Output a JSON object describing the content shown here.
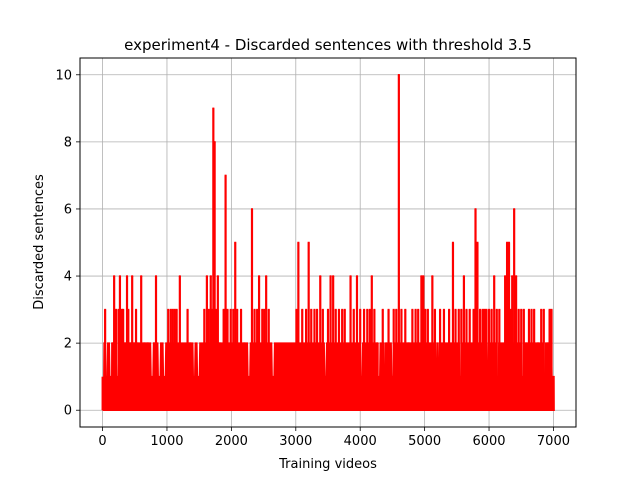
{
  "chart_data": {
    "type": "line",
    "title": "experiment4 - Discarded sentences with threshold 3.5",
    "xlabel": "Training videos",
    "ylabel": "Discarded sentences",
    "xlim": [
      -350,
      7350
    ],
    "ylim": [
      -0.5,
      10.5
    ],
    "xticks": [
      0,
      1000,
      2000,
      3000,
      4000,
      5000,
      6000,
      7000
    ],
    "xtick_labels": [
      "0",
      "1000",
      "2000",
      "3000",
      "4000",
      "5000",
      "6000",
      "7000"
    ],
    "yticks": [
      0,
      2,
      4,
      6,
      8,
      10
    ],
    "ytick_labels": [
      "0",
      "2",
      "4",
      "6",
      "8",
      "10"
    ],
    "grid": true,
    "series_color": "#ff0000",
    "x_range": [
      0,
      7010
    ],
    "baseline_max": 2,
    "base_ceiling_dips": [
      [
        1,
        0
      ],
      [
        60,
        1
      ],
      [
        130,
        1
      ],
      [
        230,
        1
      ],
      [
        770,
        1
      ],
      [
        880,
        1
      ],
      [
        960,
        1
      ],
      [
        1420,
        1
      ],
      [
        1490,
        1
      ],
      [
        2270,
        1
      ],
      [
        2650,
        1
      ],
      [
        3100,
        1
      ],
      [
        3460,
        1
      ],
      [
        4020,
        1
      ],
      [
        4290,
        1
      ],
      [
        4390,
        1
      ],
      [
        4500,
        1
      ],
      [
        5170,
        1
      ],
      [
        5230,
        1
      ],
      [
        5560,
        1
      ],
      [
        5970,
        1
      ],
      [
        6130,
        1
      ],
      [
        6530,
        1
      ],
      [
        6860,
        1
      ],
      [
        6990,
        1
      ]
    ],
    "spikes": [
      [
        40,
        3
      ],
      [
        150,
        2
      ],
      [
        180,
        4
      ],
      [
        210,
        3
      ],
      [
        250,
        3
      ],
      [
        270,
        4
      ],
      [
        300,
        3
      ],
      [
        320,
        3
      ],
      [
        350,
        2
      ],
      [
        380,
        4
      ],
      [
        400,
        3
      ],
      [
        430,
        2
      ],
      [
        460,
        4
      ],
      [
        490,
        2
      ],
      [
        520,
        3
      ],
      [
        540,
        2
      ],
      [
        600,
        4
      ],
      [
        650,
        2
      ],
      [
        700,
        2
      ],
      [
        800,
        2
      ],
      [
        830,
        4
      ],
      [
        1020,
        3
      ],
      [
        1060,
        3
      ],
      [
        1090,
        3
      ],
      [
        1120,
        3
      ],
      [
        1150,
        3
      ],
      [
        1200,
        4
      ],
      [
        1320,
        3
      ],
      [
        1360,
        2
      ],
      [
        1580,
        3
      ],
      [
        1620,
        4
      ],
      [
        1650,
        3
      ],
      [
        1680,
        4
      ],
      [
        1700,
        3
      ],
      [
        1720,
        9
      ],
      [
        1740,
        8
      ],
      [
        1760,
        3
      ],
      [
        1790,
        4
      ],
      [
        1820,
        2
      ],
      [
        1880,
        3
      ],
      [
        1910,
        7
      ],
      [
        1940,
        3
      ],
      [
        1990,
        3
      ],
      [
        2030,
        3
      ],
      [
        2060,
        5
      ],
      [
        2090,
        3
      ],
      [
        2150,
        3
      ],
      [
        2200,
        2
      ],
      [
        2320,
        6
      ],
      [
        2360,
        3
      ],
      [
        2400,
        3
      ],
      [
        2430,
        4
      ],
      [
        2480,
        3
      ],
      [
        2510,
        3
      ],
      [
        2540,
        4
      ],
      [
        2580,
        3
      ],
      [
        3010,
        3
      ],
      [
        3040,
        5
      ],
      [
        3100,
        3
      ],
      [
        3160,
        3
      ],
      [
        3200,
        5
      ],
      [
        3240,
        3
      ],
      [
        3290,
        3
      ],
      [
        3330,
        3
      ],
      [
        3380,
        4
      ],
      [
        3420,
        3
      ],
      [
        3500,
        3
      ],
      [
        3540,
        4
      ],
      [
        3580,
        4
      ],
      [
        3620,
        3
      ],
      [
        3670,
        3
      ],
      [
        3720,
        3
      ],
      [
        3760,
        3
      ],
      [
        3850,
        4
      ],
      [
        3900,
        3
      ],
      [
        3950,
        4
      ],
      [
        4000,
        3
      ],
      [
        4060,
        3
      ],
      [
        4110,
        3
      ],
      [
        4150,
        3
      ],
      [
        4180,
        4
      ],
      [
        4220,
        3
      ],
      [
        4270,
        2
      ],
      [
        4350,
        3
      ],
      [
        4400,
        2
      ],
      [
        4440,
        3
      ],
      [
        4520,
        3
      ],
      [
        4560,
        3
      ],
      [
        4600,
        10
      ],
      [
        4640,
        3
      ],
      [
        4700,
        3
      ],
      [
        4750,
        2
      ],
      [
        4810,
        3
      ],
      [
        4860,
        3
      ],
      [
        4900,
        3
      ],
      [
        4950,
        4
      ],
      [
        4980,
        4
      ],
      [
        5010,
        3
      ],
      [
        5050,
        3
      ],
      [
        5120,
        4
      ],
      [
        5160,
        3
      ],
      [
        5240,
        3
      ],
      [
        5300,
        3
      ],
      [
        5380,
        3
      ],
      [
        5440,
        5
      ],
      [
        5480,
        3
      ],
      [
        5530,
        3
      ],
      [
        5570,
        3
      ],
      [
        5610,
        4
      ],
      [
        5650,
        3
      ],
      [
        5700,
        3
      ],
      [
        5760,
        3
      ],
      [
        5790,
        6
      ],
      [
        5820,
        5
      ],
      [
        5860,
        3
      ],
      [
        5900,
        3
      ],
      [
        5930,
        3
      ],
      [
        5960,
        3
      ],
      [
        6000,
        3
      ],
      [
        6040,
        3
      ],
      [
        6080,
        4
      ],
      [
        6120,
        3
      ],
      [
        6160,
        3
      ],
      [
        6250,
        4
      ],
      [
        6280,
        5
      ],
      [
        6310,
        5
      ],
      [
        6340,
        3
      ],
      [
        6360,
        4
      ],
      [
        6390,
        6
      ],
      [
        6420,
        4
      ],
      [
        6460,
        3
      ],
      [
        6500,
        3
      ],
      [
        6540,
        3
      ],
      [
        6580,
        2
      ],
      [
        6620,
        3
      ],
      [
        6660,
        3
      ],
      [
        6700,
        3
      ],
      [
        6760,
        2
      ],
      [
        6810,
        3
      ],
      [
        6850,
        3
      ],
      [
        6910,
        2
      ],
      [
        6940,
        3
      ],
      [
        6970,
        3
      ]
    ]
  }
}
